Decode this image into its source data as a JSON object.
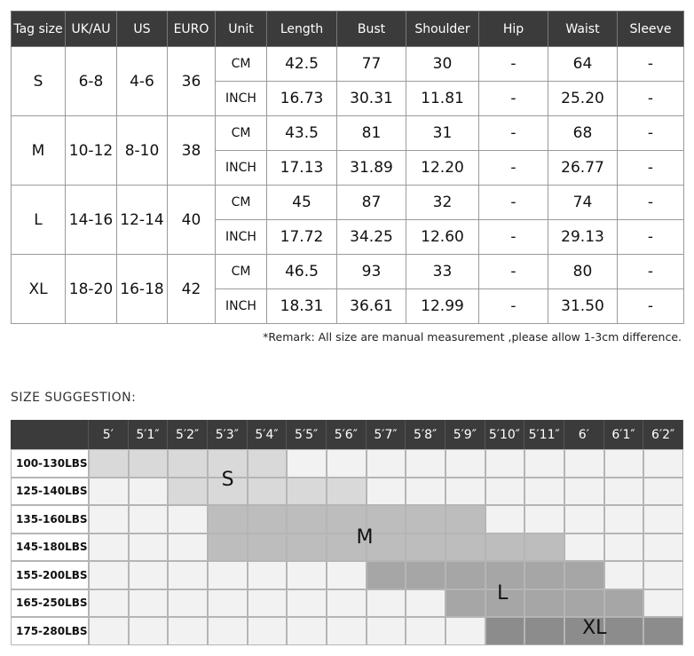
{
  "size_table": {
    "headers": [
      "Tag size",
      "UK/AU",
      "US",
      "EURO",
      "Unit",
      "Length",
      "Bust",
      "Shoulder",
      "Hip",
      "Waist",
      "Sleeve"
    ],
    "groups": [
      {
        "tag": "S",
        "uk": "6-8",
        "us": "4-6",
        "euro": "36",
        "rows": [
          {
            "unit": "CM",
            "values": [
              "42.5",
              "77",
              "30",
              "-",
              "64",
              "-"
            ]
          },
          {
            "unit": "INCH",
            "values": [
              "16.73",
              "30.31",
              "11.81",
              "-",
              "25.20",
              "-"
            ]
          }
        ]
      },
      {
        "tag": "M",
        "uk": "10-12",
        "us": "8-10",
        "euro": "38",
        "rows": [
          {
            "unit": "CM",
            "values": [
              "43.5",
              "81",
              "31",
              "-",
              "68",
              "-"
            ]
          },
          {
            "unit": "INCH",
            "values": [
              "17.13",
              "31.89",
              "12.20",
              "-",
              "26.77",
              "-"
            ]
          }
        ]
      },
      {
        "tag": "L",
        "uk": "14-16",
        "us": "12-14",
        "euro": "40",
        "rows": [
          {
            "unit": "CM",
            "values": [
              "45",
              "87",
              "32",
              "-",
              "74",
              "-"
            ]
          },
          {
            "unit": "INCH",
            "values": [
              "17.72",
              "34.25",
              "12.60",
              "-",
              "29.13",
              "-"
            ]
          }
        ]
      },
      {
        "tag": "XL",
        "uk": "18-20",
        "us": "16-18",
        "euro": "42",
        "rows": [
          {
            "unit": "CM",
            "values": [
              "46.5",
              "93",
              "33",
              "-",
              "80",
              "-"
            ]
          },
          {
            "unit": "INCH",
            "values": [
              "18.31",
              "36.61",
              "12.99",
              "-",
              "31.50",
              "-"
            ]
          }
        ]
      }
    ]
  },
  "remark": "*Remark: All size are manual measurement ,please allow 1-3cm difference.",
  "suggestion": {
    "title": "SIZE SUGGESTION:",
    "heights": [
      "5′",
      "5′1″",
      "5′2″",
      "5′3″",
      "5′4″",
      "5′5″",
      "5′6″",
      "5′7″",
      "5′8″",
      "5′9″",
      "5′10″",
      "5′11″",
      "6′",
      "6′1″",
      "6′2″"
    ],
    "weights": [
      "100-130LBS",
      "125-140LBS",
      "135-160LBS",
      "145-180LBS",
      "155-200LBS",
      "165-250LBS",
      "175-280LBS"
    ],
    "zones": [
      {
        "size": "S",
        "color": "#d9d9d9",
        "cells": [
          [
            0,
            0
          ],
          [
            0,
            1
          ],
          [
            0,
            2
          ],
          [
            0,
            3
          ],
          [
            0,
            4
          ],
          [
            1,
            2
          ],
          [
            1,
            3
          ],
          [
            1,
            4
          ],
          [
            1,
            5
          ],
          [
            1,
            6
          ]
        ]
      },
      {
        "size": "M",
        "color": "#bdbdbd",
        "cells": [
          [
            2,
            3
          ],
          [
            2,
            4
          ],
          [
            2,
            5
          ],
          [
            2,
            6
          ],
          [
            2,
            7
          ],
          [
            2,
            8
          ],
          [
            2,
            9
          ],
          [
            3,
            3
          ],
          [
            3,
            4
          ],
          [
            3,
            5
          ],
          [
            3,
            6
          ],
          [
            3,
            7
          ],
          [
            3,
            8
          ],
          [
            3,
            9
          ],
          [
            3,
            10
          ],
          [
            3,
            11
          ]
        ]
      },
      {
        "size": "L",
        "color": "#a6a6a6",
        "cells": [
          [
            4,
            7
          ],
          [
            4,
            8
          ],
          [
            4,
            9
          ],
          [
            4,
            10
          ],
          [
            4,
            11
          ],
          [
            4,
            12
          ],
          [
            5,
            9
          ],
          [
            5,
            10
          ],
          [
            5,
            11
          ],
          [
            5,
            12
          ],
          [
            5,
            13
          ]
        ]
      },
      {
        "size": "XL",
        "color": "#8c8c8c",
        "cells": [
          [
            6,
            10
          ],
          [
            6,
            11
          ],
          [
            6,
            12
          ],
          [
            6,
            13
          ],
          [
            6,
            14
          ]
        ]
      }
    ],
    "zone_labels": [
      {
        "size": "S",
        "row": 0.7,
        "col": 3.35
      },
      {
        "size": "M",
        "row": 2.75,
        "col": 6.75
      },
      {
        "size": "L",
        "row": 4.75,
        "col": 10.3
      },
      {
        "size": "XL",
        "row": 6.0,
        "col": 12.45
      }
    ]
  }
}
